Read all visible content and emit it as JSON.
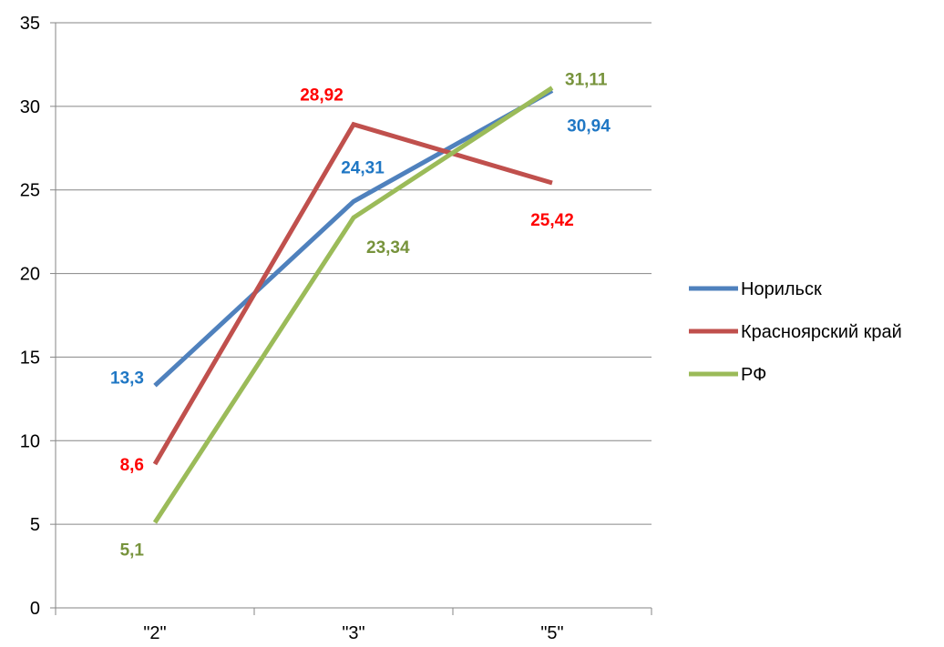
{
  "chart_data": {
    "type": "line",
    "categories": [
      "\"2\"",
      "\"3\"",
      "\"5\""
    ],
    "ylim": [
      0,
      35
    ],
    "yticks": [
      0,
      5,
      10,
      15,
      20,
      25,
      30,
      35
    ],
    "ytick_labels": [
      "0",
      "5",
      "10",
      "15",
      "20",
      "25",
      "30",
      "35"
    ],
    "grid": true,
    "legend_position": "right",
    "series": [
      {
        "name": "Норильск",
        "values": [
          13.3,
          24.31,
          30.94
        ],
        "labels": [
          "13,3",
          "24,31",
          "30,94"
        ],
        "color": "#4F81BD",
        "label_color": "#1F77C4"
      },
      {
        "name": "Красноярский край",
        "values": [
          8.6,
          28.92,
          25.42
        ],
        "labels": [
          "8,6",
          "28,92",
          "25,42"
        ],
        "color": "#C0504D",
        "label_color": "#FF0000"
      },
      {
        "name": "РФ",
        "values": [
          5.1,
          23.34,
          31.11
        ],
        "labels": [
          "5,1",
          "23,34",
          "31,11"
        ],
        "color": "#9BBB59",
        "label_color": "#77933C"
      }
    ]
  }
}
